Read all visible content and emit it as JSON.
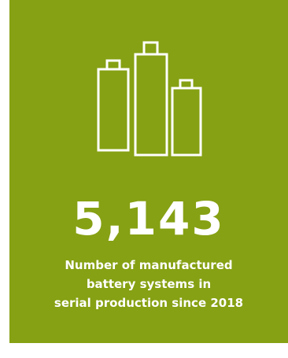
{
  "card": {
    "background_color": "#86a113",
    "text_color": "#ffffff",
    "icon": "battery-cells-icon",
    "value": "5,143",
    "caption_lines": [
      "Number of manufactured",
      "battery systems in",
      "serial production since 2018"
    ]
  }
}
